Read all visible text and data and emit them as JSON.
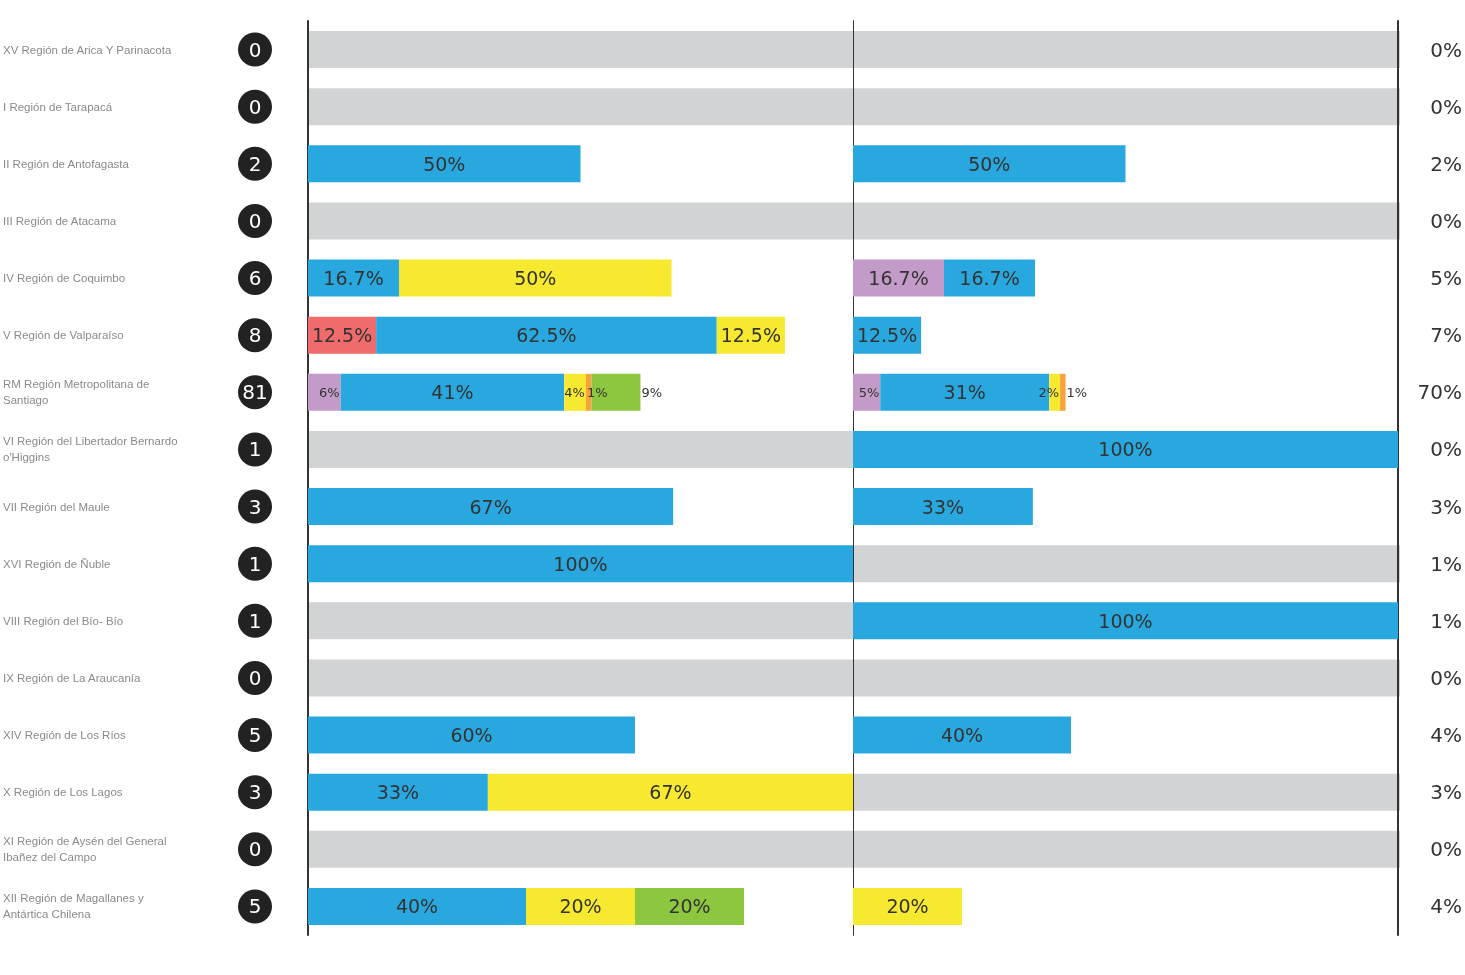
{
  "chart_data": [
    {
      "type": "bar",
      "orientation": "horizontal",
      "stacked": true,
      "tick_labels": "y",
      "categories": [
        "XV Región de Arica Y Parinacota",
        "I Región de Tarapacá",
        "II Región de Antofagasta",
        "III Región de Atacama",
        "IV Región de Coquimbo",
        "V Región de Valparaíso",
        "RM Región Metropolitana de Santiago",
        "VI Región del Libertador Bernardo o'Higgins",
        "VII Región del Maule",
        "XVI Región de Ñuble",
        "VIII Región del Bío- Bío",
        "IX Región de La Araucanía",
        "XIV Región de Los Ríos",
        "X Región de Los Lagos",
        "XI Región de Aysén del General Ibañez del Campo",
        "XII Región de Magallanes y Antártica Chilena"
      ],
      "series": [
        {
          "color": "#f06b6b",
          "values": [
            null,
            null,
            null,
            null,
            null,
            12.5,
            null,
            null,
            null,
            null,
            null,
            null,
            null,
            null,
            null,
            null
          ],
          "value_labels": [
            null,
            null,
            null,
            null,
            null,
            "12.5%",
            null,
            null,
            null,
            null,
            null,
            null,
            null,
            null,
            null,
            null
          ]
        },
        {
          "color": "#c39bc8",
          "values": [
            null,
            null,
            null,
            null,
            null,
            null,
            6,
            null,
            null,
            null,
            null,
            null,
            null,
            null,
            null,
            null
          ],
          "value_labels": [
            null,
            null,
            null,
            null,
            null,
            null,
            "6%",
            null,
            null,
            null,
            null,
            null,
            null,
            null,
            null,
            null
          ]
        },
        {
          "color": "#29a8e0",
          "values": [
            null,
            null,
            50,
            null,
            16.7,
            62.5,
            41,
            null,
            67,
            100,
            null,
            null,
            60,
            33,
            null,
            40
          ],
          "value_labels": [
            null,
            null,
            "50%",
            null,
            "16.7%",
            "62.5%",
            "41%",
            null,
            "67%",
            "100%",
            null,
            null,
            "60%",
            "33%",
            null,
            "40%"
          ]
        },
        {
          "color": "#f7e92f",
          "values": [
            null,
            null,
            null,
            null,
            50,
            12.5,
            4,
            null,
            null,
            null,
            null,
            null,
            null,
            67,
            null,
            20
          ],
          "value_labels": [
            null,
            null,
            null,
            null,
            "50%",
            "12.5%",
            "4%",
            null,
            null,
            null,
            null,
            null,
            null,
            "67%",
            null,
            "20%"
          ]
        },
        {
          "color": "#f7a23b",
          "values": [
            null,
            null,
            null,
            null,
            null,
            null,
            1,
            null,
            null,
            null,
            null,
            null,
            null,
            null,
            null,
            null
          ],
          "value_labels": [
            null,
            null,
            null,
            null,
            null,
            null,
            "1%",
            null,
            null,
            null,
            null,
            null,
            null,
            null,
            null,
            null
          ]
        },
        {
          "color": "#8dc63f",
          "values": [
            null,
            null,
            null,
            null,
            null,
            null,
            9,
            null,
            null,
            null,
            null,
            null,
            null,
            null,
            null,
            20
          ],
          "value_labels": [
            null,
            null,
            null,
            null,
            null,
            null,
            "9%",
            null,
            null,
            null,
            null,
            null,
            null,
            null,
            null,
            "20%"
          ]
        }
      ],
      "bands": [
        {
          "axis": "y",
          "from": "XV Región de Arica Y Parinacota",
          "to": "XV Región de Arica Y Parinacota",
          "color": "#d1d3d4"
        },
        {
          "axis": "y",
          "from": "I Región de Tarapacá",
          "to": "I Región de Tarapacá",
          "color": "#d1d3d4"
        },
        {
          "axis": "y",
          "from": "III Región de Atacama",
          "to": "III Región de Atacama",
          "color": "#d1d3d4"
        },
        {
          "axis": "y",
          "from": "VI Región del Libertador Bernardo o'Higgins",
          "to": "VI Región del Libertador Bernardo o'Higgins",
          "color": "#d1d3d4"
        },
        {
          "axis": "y",
          "from": "VIII Región del Bío- Bío",
          "to": "VIII Región del Bío- Bío",
          "color": "#d1d3d4"
        },
        {
          "axis": "y",
          "from": "IX Región de La Araucanía",
          "to": "IX Región de La Araucanía",
          "color": "#d1d3d4"
        },
        {
          "axis": "y",
          "from": "XI Región de Aysén del General Ibañez del Campo",
          "to": "XI Región de Aysén del General Ibañez del Campo",
          "color": "#d1d3d4"
        }
      ],
      "annotations": [
        "0",
        "0",
        "2",
        "0",
        "6",
        "8",
        "81",
        "1",
        "3",
        "1",
        "1",
        "0",
        "5",
        "3",
        "0",
        "5"
      ]
    },
    {
      "type": "bar",
      "orientation": "horizontal",
      "stacked": true,
      "tick_labels": false,
      "categories": [
        "XV Región de Arica Y Parinacota",
        "I Región de Tarapacá",
        "II Región de Antofagasta",
        "III Región de Atacama",
        "IV Región de Coquimbo",
        "V Región de Valparaíso",
        "RM Región Metropolitana de Santiago",
        "VI Región del Libertador Bernardo o'Higgins",
        "VII Región del Maule",
        "XVI Región de Ñuble",
        "VIII Región del Bío- Bío",
        "IX Región de La Araucanía",
        "XIV Región de Los Ríos",
        "X Región de Los Lagos",
        "XI Región de Aysén del General Ibañez del Campo",
        "XII Región de Magallanes y Antártica Chilena"
      ],
      "series": [
        {
          "color": "#c39bc8",
          "values": [
            null,
            null,
            null,
            null,
            16.7,
            null,
            5,
            null,
            null,
            null,
            null,
            null,
            null,
            null,
            null,
            null
          ],
          "value_labels": [
            null,
            null,
            null,
            null,
            "16.7%",
            null,
            "5%",
            null,
            null,
            null,
            null,
            null,
            null,
            null,
            null,
            null
          ]
        },
        {
          "color": "#29a8e0",
          "values": [
            null,
            null,
            50,
            null,
            16.7,
            12.5,
            31,
            100,
            33,
            null,
            100,
            null,
            40,
            null,
            null,
            null
          ],
          "value_labels": [
            null,
            null,
            "50%",
            null,
            "16.7%",
            "12.5%",
            "31%",
            "100%",
            "33%",
            null,
            "100%",
            null,
            "40%",
            null,
            null,
            null
          ]
        },
        {
          "color": "#f7e92f",
          "values": [
            null,
            null,
            null,
            null,
            null,
            null,
            2,
            null,
            null,
            null,
            null,
            null,
            null,
            null,
            null,
            20
          ],
          "value_labels": [
            null,
            null,
            null,
            null,
            null,
            null,
            "2%",
            null,
            null,
            null,
            null,
            null,
            null,
            null,
            null,
            "20%"
          ]
        },
        {
          "color": "#f7a23b",
          "values": [
            null,
            null,
            null,
            null,
            null,
            null,
            1,
            null,
            null,
            null,
            null,
            null,
            null,
            null,
            null,
            null
          ],
          "value_labels": [
            null,
            null,
            null,
            null,
            null,
            null,
            "1%",
            null,
            null,
            null,
            null,
            null,
            null,
            null,
            null,
            null
          ]
        }
      ],
      "bands": [
        {
          "axis": "y",
          "from": "XV Región de Arica Y Parinacota",
          "to": "XV Región de Arica Y Parinacota",
          "color": "#d1d3d4"
        },
        {
          "axis": "y",
          "from": "I Región de Tarapacá",
          "to": "I Región de Tarapacá",
          "color": "#d1d3d4"
        },
        {
          "axis": "y",
          "from": "III Región de Atacama",
          "to": "III Región de Atacama",
          "color": "#d1d3d4"
        },
        {
          "axis": "y",
          "from": "XVI Región de Ñuble",
          "to": "XVI Región de Ñuble",
          "color": "#d1d3d4"
        },
        {
          "axis": "y",
          "from": "IX Región de La Araucanía",
          "to": "IX Región de La Araucanía",
          "color": "#d1d3d4"
        },
        {
          "axis": "y",
          "from": "X Región de Los Lagos",
          "to": "X Región de Los Lagos",
          "color": "#d1d3d4"
        },
        {
          "axis": "y",
          "from": "XI Región de Aysén del General Ibañez del Campo",
          "to": "XI Región de Aysén del General Ibañez del Campo",
          "color": "#d1d3d4"
        }
      ],
      "annotations": [
        "0%",
        "0%",
        "2%",
        "0%",
        "5%",
        "7%",
        "70%",
        "0%",
        "3%",
        "1%",
        "1%",
        "0%",
        "4%",
        "3%",
        "0%",
        "4%"
      ]
    }
  ]
}
